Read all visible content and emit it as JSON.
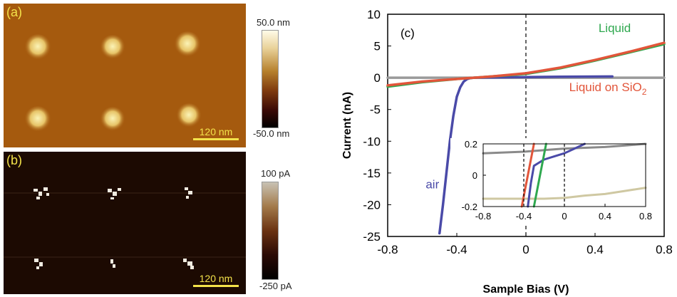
{
  "panel_a": {
    "label": "(a)",
    "scale_bar": "120 nm",
    "colorbar_max": "50.0 nm",
    "colorbar_min": "-50.0 nm"
  },
  "panel_b": {
    "label": "(b)",
    "scale_bar": "120 nm",
    "colorbar_max": "100 pA",
    "colorbar_min": "-250 pA"
  },
  "chart_data": {
    "type": "line",
    "panel_label": "(c)",
    "xlabel": "Sample Bias (V)",
    "ylabel": "Current (nA)",
    "xlim": [
      -0.8,
      0.8
    ],
    "ylim": [
      -25,
      10
    ],
    "xticks": [
      -0.8,
      -0.4,
      0,
      0.4,
      0.8
    ],
    "yticks": [
      10,
      5,
      0,
      -5,
      -10,
      -15,
      -20,
      -25
    ],
    "series": [
      {
        "name": "Liquid",
        "color": "#2fa84f",
        "x": [
          -0.8,
          -0.6,
          -0.4,
          -0.2,
          0,
          0.2,
          0.4,
          0.6,
          0.8
        ],
        "y": [
          -1.4,
          -0.7,
          -0.2,
          0.2,
          0.6,
          1.5,
          2.7,
          4.0,
          5.3
        ]
      },
      {
        "name": "Liquid on SiO2",
        "color": "#e2553a",
        "x": [
          -0.8,
          -0.6,
          -0.4,
          -0.2,
          0,
          0.2,
          0.4,
          0.6,
          0.8
        ],
        "y": [
          -1.2,
          -0.6,
          -0.2,
          0.2,
          0.7,
          1.6,
          2.8,
          4.1,
          5.5
        ]
      },
      {
        "name": "air",
        "color": "#4a4aa8",
        "x": [
          -0.5,
          -0.48,
          -0.46,
          -0.44,
          -0.42,
          -0.4,
          -0.38,
          -0.36,
          -0.34,
          -0.32,
          -0.3,
          -0.2,
          0,
          0.2,
          0.5
        ],
        "y": [
          -24.5,
          -20,
          -15,
          -10,
          -6,
          -3,
          -1.5,
          -0.6,
          -0.2,
          -0.05,
          0,
          0.05,
          0.1,
          0.15,
          0.2
        ]
      },
      {
        "name": "",
        "color": "#9a9a9a",
        "x": [
          -0.8,
          -0.4,
          0,
          0.4,
          0.8
        ],
        "y": [
          0,
          0,
          0,
          0,
          0
        ]
      }
    ],
    "annotations": [
      {
        "text": "Liquid",
        "x": 0.42,
        "y": 7.2,
        "color": "#2fa84f"
      },
      {
        "text": "Liquid on SiO",
        "sub": "2",
        "x": 0.25,
        "y": -2.1,
        "color": "#e2553a"
      },
      {
        "text": "air",
        "x": -0.58,
        "y": -17.4,
        "color": "#4a4aa8"
      }
    ],
    "vline_x": 0,
    "inset": {
      "xlim": [
        -0.8,
        0.8
      ],
      "ylim": [
        -0.2,
        0.2
      ],
      "xticks": [
        -0.8,
        -0.4,
        0,
        0.4,
        0.8
      ],
      "yticks": [
        0.2,
        0,
        -0.2
      ],
      "vlines": [
        -0.4,
        0
      ],
      "series": [
        {
          "color": "#8a8a8a",
          "x": [
            -0.8,
            -0.6,
            -0.4,
            -0.2,
            0,
            0.2,
            0.4,
            0.6,
            0.8
          ],
          "y": [
            0.14,
            0.145,
            0.15,
            0.16,
            0.17,
            0.175,
            0.18,
            0.19,
            0.2
          ]
        },
        {
          "color": "#cfc8a2",
          "x": [
            -0.8,
            -0.6,
            -0.4,
            -0.2,
            0,
            0.2,
            0.4,
            0.6,
            0.8
          ],
          "y": [
            -0.15,
            -0.15,
            -0.15,
            -0.15,
            -0.145,
            -0.13,
            -0.12,
            -0.1,
            -0.08
          ]
        },
        {
          "color": "#e2553a",
          "x": [
            -0.42,
            -0.39,
            -0.36,
            -0.33,
            -0.3
          ],
          "y": [
            -0.2,
            -0.1,
            0,
            0.1,
            0.2
          ]
        },
        {
          "color": "#4a4aa8",
          "x": [
            -0.36,
            -0.33,
            -0.3,
            -0.25,
            -0.2,
            -0.1,
            0,
            0.1,
            0.2
          ],
          "y": [
            -0.2,
            -0.05,
            0.06,
            0.08,
            0.1,
            0.12,
            0.14,
            0.17,
            0.2
          ]
        },
        {
          "color": "#2fa84f",
          "x": [
            -0.3,
            -0.27,
            -0.24,
            -0.21,
            -0.18
          ],
          "y": [
            -0.2,
            -0.1,
            0,
            0.1,
            0.2
          ]
        }
      ]
    }
  }
}
